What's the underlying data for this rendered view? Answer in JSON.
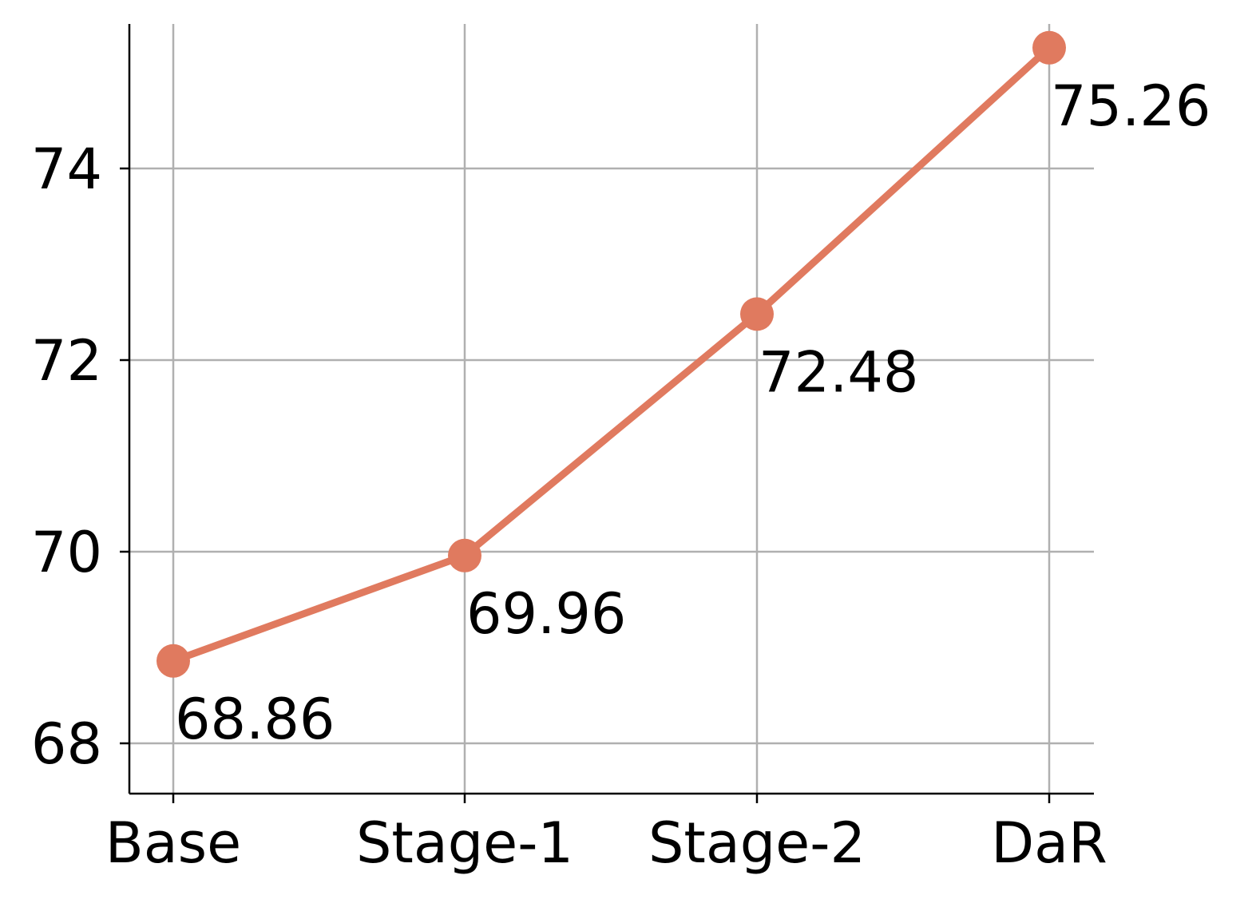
{
  "chart_data": {
    "type": "line",
    "categories": [
      "Base",
      "Stage-1",
      "Stage-2",
      "DaR"
    ],
    "series": [
      {
        "values": [
          68.86,
          69.96,
          72.48,
          75.26
        ]
      }
    ],
    "data_labels": [
      "68.86",
      "69.96",
      "72.48",
      "75.26"
    ],
    "title": "",
    "xlabel": "",
    "ylabel": "",
    "yticks": [
      68,
      70,
      72,
      74
    ],
    "ytick_labels": [
      "68",
      "70",
      "72",
      "74"
    ],
    "ylim": [
      67.5,
      75.5
    ],
    "grid": true,
    "line_color": "#E07A5F",
    "grid_color": "#b0b0b0",
    "axis_color": "#000000"
  }
}
